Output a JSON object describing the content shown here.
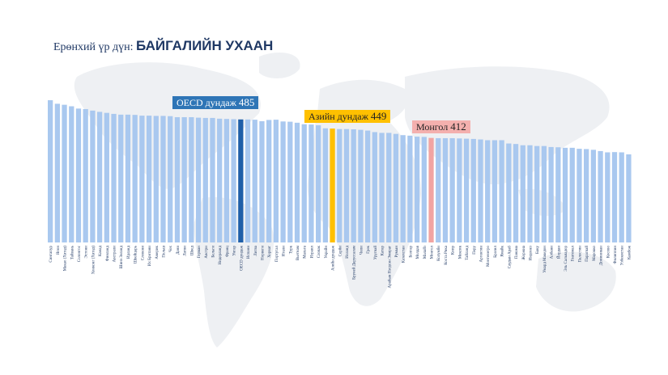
{
  "title": {
    "prefix": "Ерөнхий үр дүн:",
    "subject": "БАЙГАЛИЙН УХААН"
  },
  "callouts": {
    "oecd": {
      "label": "OECD дундаж",
      "value": "485"
    },
    "asia": {
      "label": "Азийн дундаж",
      "value": "449"
    },
    "mongolia": {
      "label": "Монгол",
      "value": "412"
    }
  },
  "colors": {
    "bar_default": "#a9c8ef",
    "bar_oecd": "#1f5fa8",
    "bar_asia": "#ffc000",
    "bar_mongolia": "#f2a4a2",
    "title": "#1f3864",
    "map": "#eef0f3"
  },
  "chart_data": {
    "type": "bar",
    "categories": [
      "Сингапур",
      "Япон",
      "Макао (Хятад)",
      "Тайвань",
      "Солонгос",
      "Эстони",
      "Хонконг (Хятад)",
      "Канад",
      "Финланд",
      "Австрали",
      "Шинэ Зеланд",
      "Ирланд",
      "Швейцарь",
      "Словени",
      "Их Британи",
      "Америк",
      "Польш",
      "Чех",
      "Дани",
      "Латви",
      "Швед",
      "Герман",
      "Австри",
      "Бельги",
      "Нидерланд",
      "Франц",
      "Унгар",
      "OECD дундаж",
      "Испани",
      "Литва",
      "Норвеги",
      "Хорват",
      "Португал",
      "Итали",
      "Турк",
      "Вьетнам",
      "Мальта",
      "Израил",
      "Словак",
      "Украйн",
      "Азийн дундаж",
      "Серби",
      "Исланд",
      "Бруней Даруссалам",
      "Чили",
      "Грек",
      "Уругвай",
      "Катар",
      "Арабын Нэгдсэн Эмират",
      "Румын",
      "Казахстан",
      "Болгар",
      "Молдав",
      "Малайз",
      "Монгол",
      "Колумби",
      "Коста Рика",
      "Кипр",
      "Мексик",
      "Тайланд",
      "Перу",
      "Аргентин",
      "Монтенегро",
      "Бразил",
      "Ямайк",
      "Саудын Араб",
      "Панама",
      "Жоржиа",
      "Индонез",
      "Баку",
      "Умард Македон",
      "Албани",
      "Йордан",
      "Эль Сальвадор",
      "Гватемал",
      "Палестин",
      "Парагвай",
      "Марокко",
      "Доминикан",
      "Косово",
      "Филиппин",
      "Узбекистан",
      "Камбож"
    ],
    "values": [
      561,
      547,
      543,
      537,
      528,
      526,
      520,
      515,
      511,
      507,
      504,
      504,
      503,
      500,
      500,
      499,
      499,
      498,
      494,
      494,
      494,
      492,
      491,
      491,
      488,
      487,
      486,
      485,
      485,
      484,
      478,
      483,
      484,
      477,
      476,
      472,
      466,
      465,
      462,
      450,
      449,
      447,
      447,
      446,
      444,
      441,
      435,
      432,
      432,
      428,
      423,
      421,
      417,
      416,
      412,
      411,
      411,
      411,
      410,
      409,
      408,
      406,
      403,
      403,
      403,
      390,
      388,
      383,
      383,
      380,
      380,
      376,
      375,
      373,
      373,
      369,
      368,
      365,
      360,
      355,
      356,
      355,
      347
    ],
    "highlight": {
      "oecd": 27,
      "asia": 40,
      "mongolia": 54
    },
    "ylim": [
      0,
      600
    ],
    "title": "",
    "xlabel": "",
    "ylabel": "",
    "grid": false,
    "legend": "none"
  }
}
